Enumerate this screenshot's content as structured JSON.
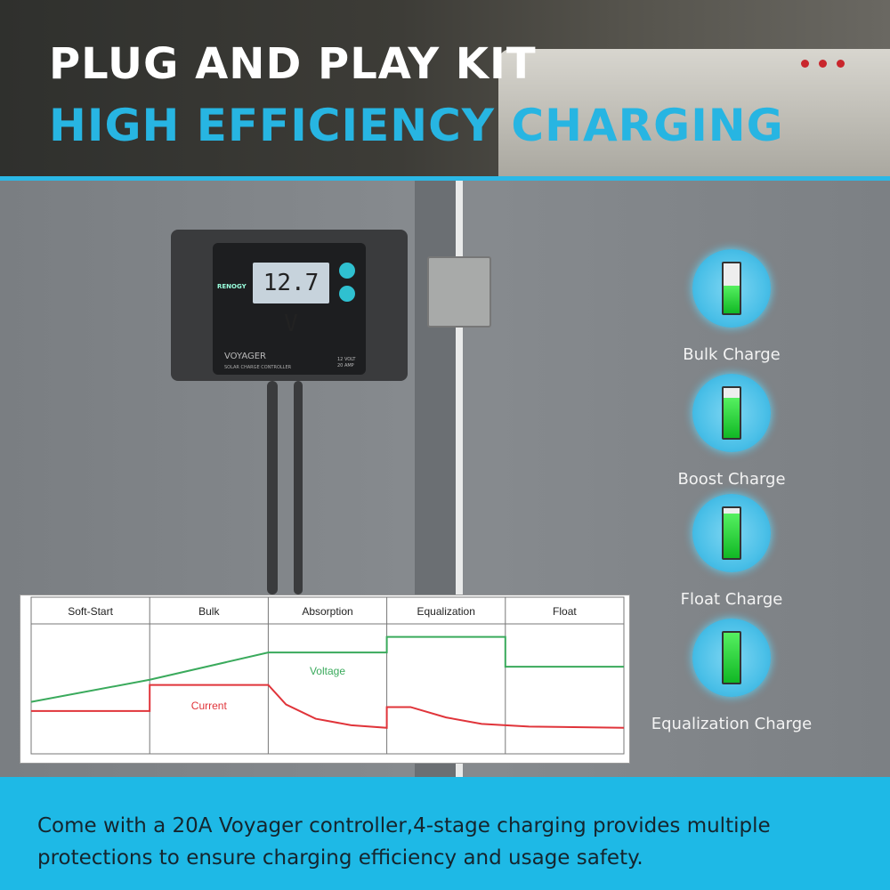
{
  "header": {
    "title": "PLUG AND PLAY KIT",
    "subtitle": "HIGH EFFICIENCY CHARGING"
  },
  "controller": {
    "brand": "RENOGY",
    "display_value": "12.7",
    "display_unit": "V",
    "model": "VOYAGER",
    "model_desc": "SOLAR CHARGE CONTROLLER",
    "rating_voltage": "12 VOLT",
    "rating_amp": "20 AMP"
  },
  "stages": [
    {
      "label": "Bulk Charge",
      "battery_level": 55,
      "icon": "battery-charging-icon"
    },
    {
      "label": "Boost Charge",
      "battery_level": 80,
      "icon": "battery-charging-icon"
    },
    {
      "label": "Float Charge",
      "battery_level": 90,
      "icon": "battery-charging-icon"
    },
    {
      "label": "Equalization Charge",
      "battery_level": 100,
      "icon": "battery-bolt-icon"
    }
  ],
  "chart_data": {
    "type": "line",
    "categories": [
      "Soft-Start",
      "Bulk",
      "Absorption",
      "Equalization",
      "Float"
    ],
    "grid": "vertical phase dividers",
    "series": [
      {
        "name": "Voltage",
        "color": "#3aaa5c",
        "points": [
          [
            0,
            40
          ],
          [
            1,
            57
          ],
          [
            2,
            78
          ],
          [
            3,
            78
          ],
          [
            3,
            90
          ],
          [
            4,
            90
          ],
          [
            4,
            67
          ],
          [
            5,
            67
          ]
        ]
      },
      {
        "name": "Current",
        "color": "#e0343a",
        "points": [
          [
            0,
            33
          ],
          [
            1,
            33
          ],
          [
            1,
            53
          ],
          [
            2,
            53
          ],
          [
            2.15,
            38
          ],
          [
            2.4,
            27
          ],
          [
            2.7,
            22
          ],
          [
            3,
            20
          ],
          [
            3,
            36
          ],
          [
            3.2,
            36
          ],
          [
            3.5,
            28
          ],
          [
            3.8,
            23
          ],
          [
            4.2,
            21
          ],
          [
            5,
            20
          ]
        ]
      }
    ]
  },
  "footer": {
    "text": "Come with a 20A Voyager controller,4-stage charging provides multiple protections to ensure charging efficiency and usage safety."
  },
  "colors": {
    "accent": "#1eb9e6",
    "title_cyan": "#27b5e2"
  }
}
